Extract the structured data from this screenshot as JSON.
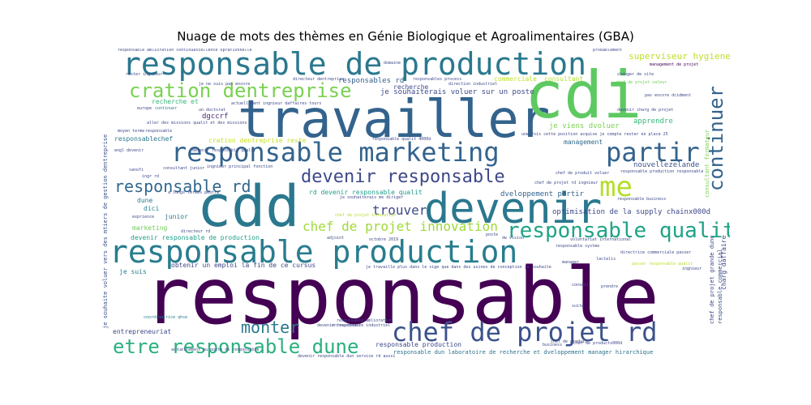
{
  "title": "Nuage de mots des thèmes en Génie Biologique et Agroalimentaires (GBA)",
  "words": [
    {
      "text": "responsable",
      "color": "#440154"
    },
    {
      "text": "travailler",
      "color": "#33638d"
    },
    {
      "text": "cdd",
      "color": "#2a788e"
    },
    {
      "text": "cdi",
      "color": "#5ec962"
    },
    {
      "text": "devenir",
      "color": "#2a788e"
    },
    {
      "text": "responsable de production",
      "color": "#2a788e"
    },
    {
      "text": "responsable production",
      "color": "#287d8e"
    },
    {
      "text": "responsable marketing",
      "color": "#33638d"
    },
    {
      "text": "chef de projet rd",
      "color": "#3b528b"
    },
    {
      "text": "partir",
      "color": "#33638d"
    },
    {
      "text": "me",
      "color": "#b5de2b"
    },
    {
      "text": "continuer",
      "color": "#33638d"
    },
    {
      "text": "devenir responsable",
      "color": "#3e4989"
    },
    {
      "text": "responsable qualit",
      "color": "#20a386"
    },
    {
      "text": "etre responsable dune",
      "color": "#2ab07f"
    },
    {
      "text": "cration dentreprise",
      "color": "#7ad151"
    },
    {
      "text": "responsable rd",
      "color": "#31688e"
    },
    {
      "text": "trouver",
      "color": "#3e4989"
    },
    {
      "text": "chef de projet innovation",
      "color": "#a0da39"
    },
    {
      "text": "monter",
      "color": "#2a788e"
    },
    {
      "text": "superviseur hygiene",
      "color": "#bddf26"
    },
    {
      "text": "responsable dun laboratoire de recherche et dveloppement manager hirarchique",
      "color": "#2c728e"
    },
    {
      "text": "je souhaiterais voluer sur un poste",
      "color": "#3e4989"
    },
    {
      "text": "rd devenir responsable qualit",
      "color": "#1f9e89"
    },
    {
      "text": "optimisation de la supply chainx000d",
      "color": "#3e4989"
    },
    {
      "text": "dveloppement partir",
      "color": "#33638d"
    },
    {
      "text": "je viens dvoluer",
      "color": "#7ad151"
    },
    {
      "text": "apprendre",
      "color": "#35b779"
    },
    {
      "text": "management",
      "color": "#31688e"
    },
    {
      "text": "nouvellezelande",
      "color": "#3b528b"
    },
    {
      "text": "responsables rd",
      "color": "#355f8d"
    },
    {
      "text": "recherche",
      "color": "#3e4989"
    },
    {
      "text": "commerciale",
      "color": "#bddf26"
    },
    {
      "text": "consultant",
      "color": "#b5de2b"
    },
    {
      "text": "cration dentreprise reste",
      "color": "#c8e020"
    },
    {
      "text": "responsablechef",
      "color": "#2a788e"
    },
    {
      "text": "dgccrf",
      "color": "#482878"
    },
    {
      "text": "recherche et",
      "color": "#35b779"
    },
    {
      "text": "obtenir un emploi  la fin de ce cursus",
      "color": "#3e4989"
    },
    {
      "text": "devenir responsable de production",
      "color": "#1f9e89"
    },
    {
      "text": "marketing",
      "color": "#6ece58"
    },
    {
      "text": "entrepreneuriat",
      "color": "#3e4989"
    },
    {
      "text": "junior",
      "color": "#2a788e"
    },
    {
      "text": "je suis",
      "color": "#26828e"
    },
    {
      "text": "dune",
      "color": "#2a788e"
    },
    {
      "text": "dici",
      "color": "#26828e"
    },
    {
      "text": "responsable production",
      "color": "#3e4989"
    },
    {
      "text": "coordinatrice qhse",
      "color": "#2a788e"
    },
    {
      "text": "actuellement au poste de responsable",
      "color": "#3e4989"
    },
    {
      "text": "je souhaite voluer vers des mtiers de gestion dentreprise",
      "color": "#3b528b"
    },
    {
      "text": "chef de projet grande dune",
      "color": "#3e4989"
    },
    {
      "text": "responsable commercial",
      "color": "#3b528b"
    },
    {
      "text": "consultant formateur",
      "color": "#7ad151"
    },
    {
      "text": "charg daffaire",
      "color": "#3e4989"
    },
    {
      "text": "responsable amlioration continuexcellence oprationnelle",
      "color": "#3e4989"
    },
    {
      "text": "directeur dentreprise",
      "color": "#3e4989"
    },
    {
      "text": "rester ingnieur",
      "color": "#3e4989"
    },
    {
      "text": "management de projet",
      "color": "#440154"
    },
    {
      "text": "chef de produit voluer",
      "color": "#3e4989"
    },
    {
      "text": "responsable production responsable",
      "color": "#3e4989"
    },
    {
      "text": "devenir charg de projet",
      "color": "#3e4989"
    },
    {
      "text": "volontariat international",
      "color": "#3e4989"
    },
    {
      "text": "octobre 2019",
      "color": "#3e4989"
    },
    {
      "text": "europe",
      "color": "#3e4989"
    },
    {
      "text": "continuer",
      "color": "#2a788e"
    },
    {
      "text": "un doctorat",
      "color": "#3e4989"
    },
    {
      "text": "actuellement ingnieur daffaires tours",
      "color": "#3e4989"
    },
    {
      "text": "moyen terme",
      "color": "#3e4989"
    },
    {
      "text": "responsable",
      "color": "#3e4989"
    },
    {
      "text": "sanofi",
      "color": "#3e4989"
    },
    {
      "text": "consultant junior",
      "color": "#3e4989"
    },
    {
      "text": "prendre",
      "color": "#3e4989"
    },
    {
      "text": "conseil",
      "color": "#3e4989"
    },
    {
      "text": "manager",
      "color": "#3e4989"
    },
    {
      "text": "je travaille plus dans le sige que dans des usines de conception je souhaite",
      "color": "#3e4989"
    },
    {
      "text": "devenir responsable dun service rd aussi",
      "color": "#3e4989"
    },
    {
      "text": "responsable amlioration",
      "color": "#3e4989"
    },
    {
      "text": "probablement",
      "color": "#3e4989"
    },
    {
      "text": "changer de site",
      "color": "#3e4989"
    },
    {
      "text": "chef de projet valeur",
      "color": "#6ece58"
    },
    {
      "text": "chef de projet rd ingnieur",
      "color": "#3e4989"
    },
    {
      "text": "je souhaiterais me diriger",
      "color": "#3e4989"
    },
    {
      "text": "chef de projet innovation",
      "color": "#b5de2b"
    },
    {
      "text": "adjoint",
      "color": "#3e4989"
    },
    {
      "text": "poste",
      "color": "#3e4989"
    },
    {
      "text": "de vision",
      "color": "#3e4989"
    },
    {
      "text": "directrice commerciale passer",
      "color": "#3e4989"
    },
    {
      "text": "passer responsable qualit",
      "color": "#b5de2b"
    },
    {
      "text": "responsable business",
      "color": "#3e4989"
    },
    {
      "text": "lactalis",
      "color": "#3e4989"
    },
    {
      "text": "ingnieur",
      "color": "#3e4989"
    },
    {
      "text": "domaine",
      "color": "#3e4989"
    },
    {
      "text": "responsables process",
      "color": "#3e4989"
    },
    {
      "text": "direction industriel",
      "color": "#3e4989"
    },
    {
      "text": "une fois cette position acquise je compte rester en place 25",
      "color": "#3e4989"
    },
    {
      "text": "responsable qualit 4000d",
      "color": "#3e4989"
    },
    {
      "text": "chef de produit",
      "color": "#3e4989"
    },
    {
      "text": "devenir responsable qualit",
      "color": "#3e4989"
    },
    {
      "text": "ingr rd",
      "color": "#3e4989"
    },
    {
      "text": "exprience",
      "color": "#3e4989"
    },
    {
      "text": "a longs termes peutre",
      "color": "#3e4989"
    },
    {
      "text": "suite",
      "color": "#3e4989"
    },
    {
      "text": "business",
      "color": "#3e4989"
    },
    {
      "text": "chef de productx000d",
      "color": "#3e4989"
    },
    {
      "text": "entrepreneur",
      "color": "#3e4989"
    },
    {
      "text": "je ne suis pas encore",
      "color": "#3e4989"
    },
    {
      "text": "aller des missions qualit et des missions",
      "color": "#3e4989"
    },
    {
      "text": "ingnieur principal fonction",
      "color": "#3e4989"
    },
    {
      "text": "devenir responsable industriel",
      "color": "#3e4989"
    },
    {
      "text": "directeur rd",
      "color": "#3e4989"
    },
    {
      "text": "pas encore dcidment",
      "color": "#3e4989"
    },
    {
      "text": "responsable systme",
      "color": "#3e4989"
    },
    {
      "text": "engl devenir",
      "color": "#3e4989"
    }
  ]
}
